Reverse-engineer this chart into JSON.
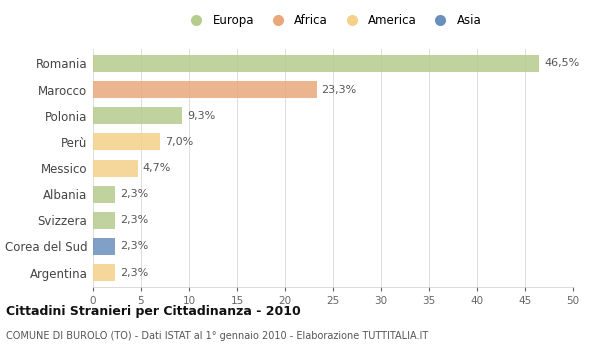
{
  "countries": [
    "Romania",
    "Marocco",
    "Polonia",
    "Perù",
    "Messico",
    "Albania",
    "Svizzera",
    "Corea del Sud",
    "Argentina"
  ],
  "values": [
    46.5,
    23.3,
    9.3,
    7.0,
    4.7,
    2.3,
    2.3,
    2.3,
    2.3
  ],
  "labels": [
    "46,5%",
    "23,3%",
    "9,3%",
    "7,0%",
    "4,7%",
    "2,3%",
    "2,3%",
    "2,3%",
    "2,3%"
  ],
  "colors": [
    "#b5cc8e",
    "#e8a87c",
    "#b5cc8e",
    "#f5d08a",
    "#f5d08a",
    "#b5cc8e",
    "#b5cc8e",
    "#6a8fbd",
    "#f5d08a"
  ],
  "legend_labels": [
    "Europa",
    "Africa",
    "America",
    "Asia"
  ],
  "legend_colors": [
    "#b5cc8e",
    "#e8a87c",
    "#f5d08a",
    "#6a8fbd"
  ],
  "title": "Cittadini Stranieri per Cittadinanza - 2010",
  "subtitle": "COMUNE DI BUROLO (TO) - Dati ISTAT al 1° gennaio 2010 - Elaborazione TUTTITALIA.IT",
  "xlim": [
    0,
    50
  ],
  "xticks": [
    0,
    5,
    10,
    15,
    20,
    25,
    30,
    35,
    40,
    45,
    50
  ],
  "background_color": "#ffffff",
  "grid_color": "#dddddd",
  "bar_height": 0.65,
  "label_fontsize": 8,
  "ytick_fontsize": 8.5,
  "xtick_fontsize": 7.5
}
